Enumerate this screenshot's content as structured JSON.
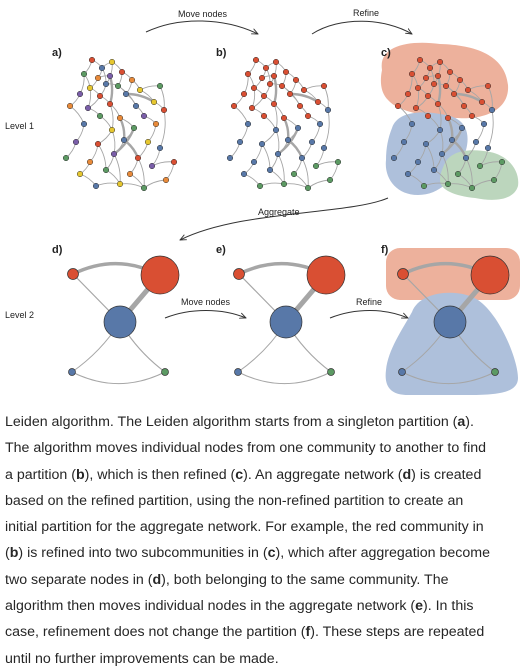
{
  "diagram": {
    "panel_labels": [
      "a)",
      "b)",
      "c)",
      "d)",
      "e)",
      "f)"
    ],
    "level_labels": [
      "Level 1",
      "Level 2"
    ],
    "step_labels": {
      "move_nodes_1": "Move nodes",
      "refine_1": "Refine",
      "aggregate": "Aggregate",
      "move_nodes_2": "Move nodes",
      "refine_2": "Refine"
    },
    "colors": {
      "red": "#d94f33",
      "blue": "#5878a8",
      "green": "#5c9a63",
      "yellow": "#e6c730",
      "orange": "#e88a3a",
      "purple": "#7a5ea8",
      "edge": "#a6a6a6",
      "red_region": "#edb19c",
      "blue_region": "#aec0db",
      "green_region": "#bcd6bd"
    }
  },
  "caption": {
    "lines": [
      [
        "Leiden algorithm. The Leiden algorithm starts from a singleton partition (",
        {
          "b": "a"
        },
        ")."
      ],
      [
        "The algorithm moves individual nodes from one community to another to find"
      ],
      [
        "a partition (",
        {
          "b": "b"
        },
        "), which is then refined (",
        {
          "b": "c"
        },
        "). An aggregate network (",
        {
          "b": "d"
        },
        ") is created"
      ],
      [
        "based on the refined partition, using the non-refined partition to create an"
      ],
      [
        "initial partition for the aggregate network. For example, the red community in"
      ],
      [
        "(",
        {
          "b": "b"
        },
        ") is refined into two subcommunities in (",
        {
          "b": "c"
        },
        "), which after aggregation become"
      ],
      [
        "two separate nodes in (",
        {
          "b": "d"
        },
        "), both belonging to the same community. The"
      ],
      [
        "algorithm then moves individual nodes in the aggregate network (",
        {
          "b": "e"
        },
        "). In this"
      ],
      [
        "case, refinement does not change the partition (",
        {
          "b": "f"
        },
        "). These steps are repeated"
      ],
      [
        "until no further improvements can be made."
      ]
    ]
  }
}
